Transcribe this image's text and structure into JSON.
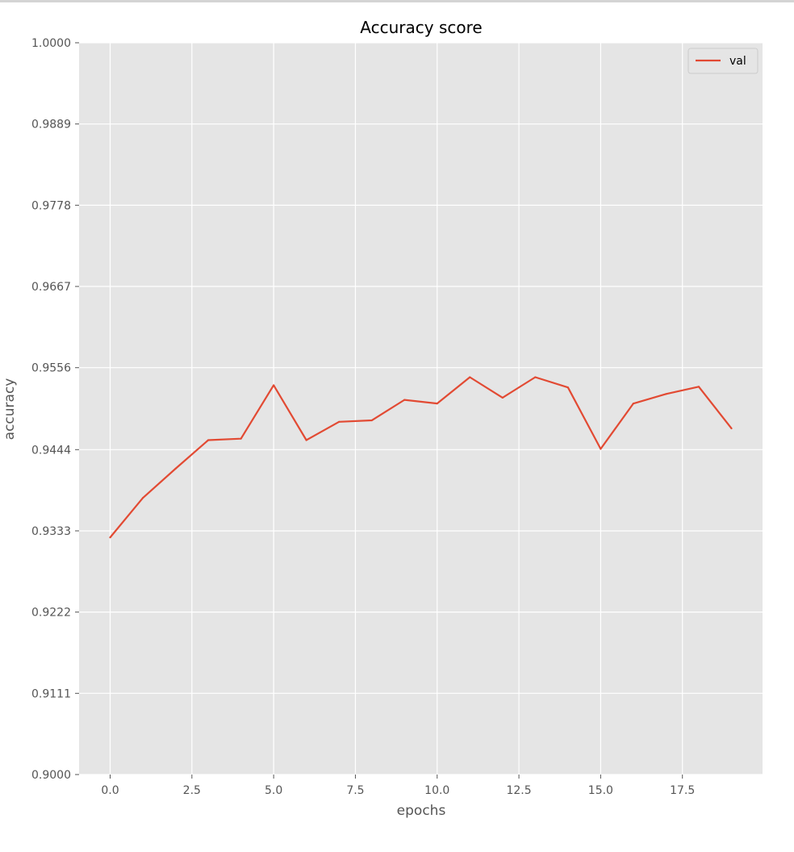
{
  "chart_data": {
    "type": "line",
    "title": "Accuracy score",
    "xlabel": "epochs",
    "ylabel": "accuracy",
    "xlim": [
      -0.95,
      19.95
    ],
    "ylim": [
      0.9,
      1.0
    ],
    "x_ticks": [
      0.0,
      2.5,
      5.0,
      7.5,
      10.0,
      12.5,
      15.0,
      17.5
    ],
    "x_tick_labels": [
      "0.0",
      "2.5",
      "5.0",
      "7.5",
      "10.0",
      "12.5",
      "15.0",
      "17.5"
    ],
    "y_ticks": [
      0.9,
      0.9111,
      0.9222,
      0.9333,
      0.9444,
      0.9556,
      0.9667,
      0.9778,
      0.9889,
      1.0
    ],
    "y_tick_labels": [
      "0.9000",
      "0.9111",
      "0.9222",
      "0.9333",
      "0.9444",
      "0.9556",
      "0.9667",
      "0.9778",
      "0.9889",
      "1.0000"
    ],
    "grid": true,
    "legend": {
      "position": "top-right"
    },
    "colors": {
      "background": "#e5e5e5",
      "grid": "#ffffff",
      "series": "#e24a33",
      "text": "#555555",
      "title": "#000000"
    },
    "series": [
      {
        "name": "val",
        "x": [
          0,
          1,
          2,
          3,
          4,
          5,
          6,
          7,
          8,
          9,
          10,
          11,
          12,
          13,
          14,
          15,
          16,
          17,
          18,
          19
        ],
        "values": [
          0.9324,
          0.9378,
          0.9418,
          0.9457,
          0.9459,
          0.9532,
          0.9457,
          0.9482,
          0.9484,
          0.9512,
          0.9507,
          0.9543,
          0.9515,
          0.9543,
          0.9529,
          0.9445,
          0.9507,
          0.952,
          0.953,
          0.9473
        ]
      }
    ]
  }
}
